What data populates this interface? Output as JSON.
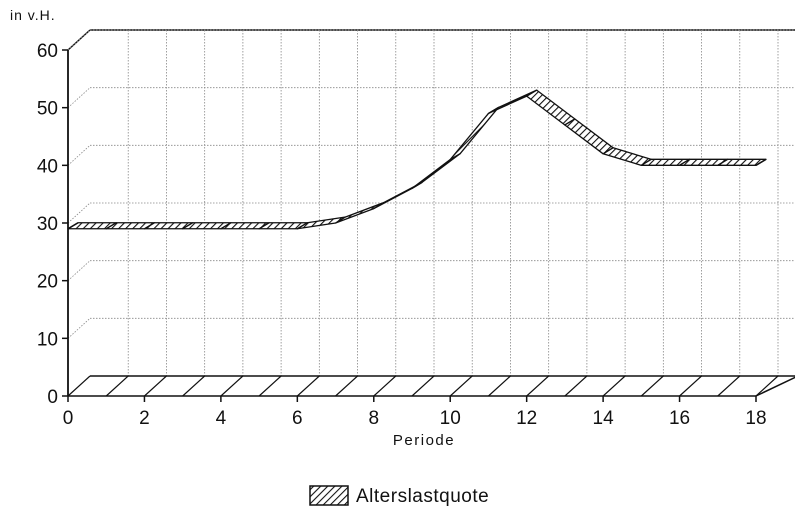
{
  "chart_data": {
    "type": "line",
    "title": "",
    "unit_label": "in v.H.",
    "xlabel": "Periode",
    "ylabel": "",
    "xlim": [
      0,
      18
    ],
    "ylim": [
      0,
      60
    ],
    "x_ticks": [
      0,
      2,
      4,
      6,
      8,
      10,
      12,
      14,
      16,
      18
    ],
    "y_ticks": [
      0,
      10,
      20,
      30,
      40,
      50,
      60
    ],
    "grid": true,
    "legend": "bottom-center",
    "series": [
      {
        "name": "Alterslastquote",
        "x": [
          0,
          1,
          2,
          3,
          4,
          5,
          6,
          7,
          8,
          9,
          10,
          11,
          12,
          13,
          14,
          15,
          16,
          17,
          18
        ],
        "values": [
          29,
          29,
          29,
          29,
          29,
          29,
          29,
          30,
          32.5,
          36,
          41,
          49,
          52,
          47,
          42,
          40,
          40,
          40,
          40
        ]
      }
    ]
  },
  "colors": {
    "ink": "#111111",
    "grid": "#888888",
    "band_fill": "#ffffff"
  }
}
